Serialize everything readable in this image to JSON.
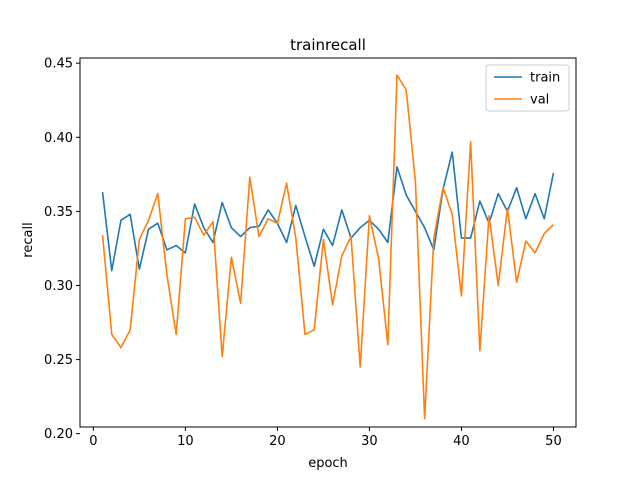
{
  "chart_data": {
    "type": "line",
    "title": "trainrecall",
    "xlabel": "epoch",
    "ylabel": "recall",
    "xlim": [
      -1.45,
      52.45
    ],
    "ylim": [
      0.2045,
      0.4535
    ],
    "xticks": [
      0,
      10,
      20,
      30,
      40,
      50
    ],
    "yticks": [
      0.2,
      0.25,
      0.3,
      0.35,
      0.4,
      0.45
    ],
    "ytick_labels": [
      "0.20",
      "0.25",
      "0.30",
      "0.35",
      "0.40",
      "0.45"
    ],
    "grid": false,
    "legend": "top-right",
    "x": [
      1,
      2,
      3,
      4,
      5,
      6,
      7,
      8,
      9,
      10,
      11,
      12,
      13,
      14,
      15,
      16,
      17,
      18,
      19,
      20,
      21,
      22,
      23,
      24,
      25,
      26,
      27,
      28,
      29,
      30,
      31,
      32,
      33,
      34,
      35,
      36,
      37,
      38,
      39,
      40,
      41,
      42,
      43,
      44,
      45,
      46,
      47,
      48,
      49,
      50
    ],
    "series": [
      {
        "name": "train",
        "color": "#1f77b4",
        "values": [
          0.363,
          0.31,
          0.344,
          0.348,
          0.311,
          0.338,
          0.342,
          0.324,
          0.327,
          0.322,
          0.355,
          0.339,
          0.329,
          0.356,
          0.339,
          0.333,
          0.339,
          0.34,
          0.351,
          0.342,
          0.329,
          0.354,
          0.333,
          0.313,
          0.338,
          0.327,
          0.351,
          0.332,
          0.339,
          0.344,
          0.338,
          0.329,
          0.38,
          0.361,
          0.35,
          0.339,
          0.324,
          0.365,
          0.39,
          0.332,
          0.332,
          0.357,
          0.342,
          0.362,
          0.35,
          0.366,
          0.345,
          0.362,
          0.345,
          0.376
        ]
      },
      {
        "name": "val",
        "color": "#ff7f0e",
        "values": [
          0.334,
          0.267,
          0.258,
          0.27,
          0.331,
          0.344,
          0.362,
          0.307,
          0.267,
          0.345,
          0.346,
          0.334,
          0.343,
          0.252,
          0.319,
          0.288,
          0.373,
          0.333,
          0.345,
          0.342,
          0.369,
          0.332,
          0.267,
          0.27,
          0.331,
          0.287,
          0.32,
          0.333,
          0.245,
          0.347,
          0.318,
          0.26,
          0.442,
          0.432,
          0.37,
          0.21,
          0.332,
          0.366,
          0.348,
          0.293,
          0.397,
          0.256,
          0.347,
          0.3,
          0.352,
          0.302,
          0.33,
          0.322,
          0.335,
          0.341
        ]
      }
    ]
  }
}
